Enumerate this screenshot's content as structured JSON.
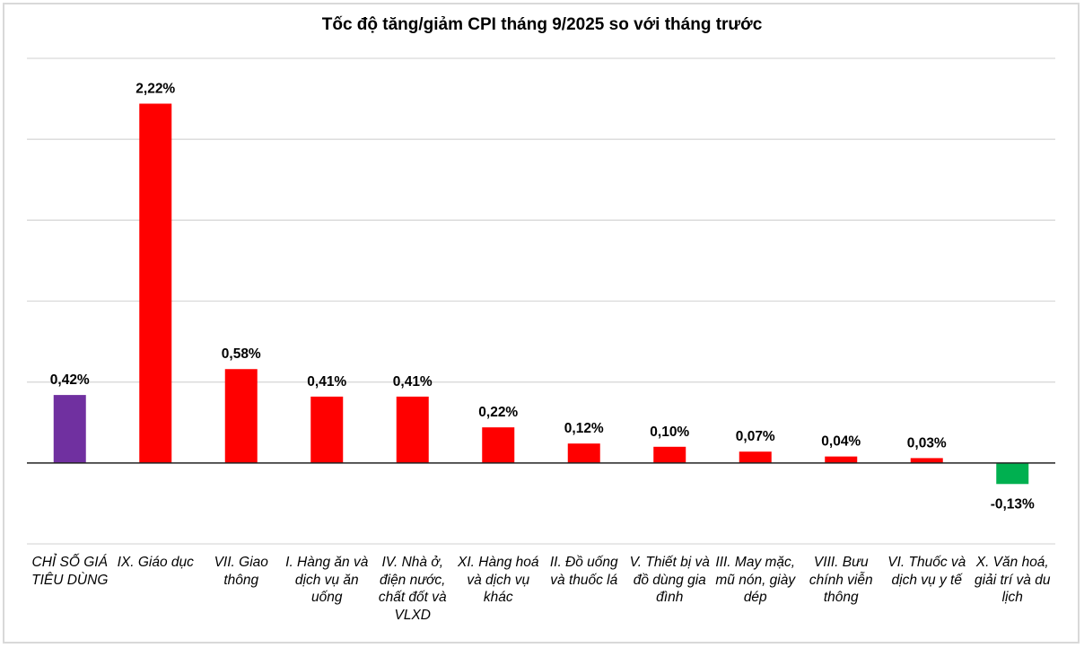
{
  "chart_data": {
    "type": "bar",
    "title": "Tốc độ tăng/giảm CPI tháng 9/2025 so với tháng trước",
    "xlabel": "",
    "ylabel": "",
    "ylim": [
      -0.5,
      2.5
    ],
    "grid": true,
    "y_axis_labels_shown": false,
    "categories": [
      "CHỈ SỐ GIÁ TIÊU DÙNG",
      "IX. Giáo dục",
      "VII. Giao thông",
      "I. Hàng ăn và dịch vụ ăn uống",
      "IV. Nhà ở, điện nước, chất đốt và VLXD",
      "XI. Hàng hoá và dịch vụ khác",
      "II. Đồ uống và thuốc lá",
      "V. Thiết bị và đồ dùng gia đình",
      "III. May mặc, mũ nón, giày dép",
      "VIII. Bưu chính viễn thông",
      "VI. Thuốc và dịch vụ y tế",
      "X. Văn hoá, giải trí và du lịch"
    ],
    "values": [
      0.42,
      2.22,
      0.58,
      0.41,
      0.41,
      0.22,
      0.12,
      0.1,
      0.07,
      0.04,
      0.03,
      -0.13
    ],
    "data_labels": [
      "0,42%",
      "2,22%",
      "0,58%",
      "0,41%",
      "0,41%",
      "0,22%",
      "0,12%",
      "0,10%",
      "0,07%",
      "0,04%",
      "0,03%",
      "-0,13%"
    ],
    "colors": {
      "total": "#7030A0",
      "increase": "#FF0000",
      "decrease": "#00B050"
    }
  }
}
